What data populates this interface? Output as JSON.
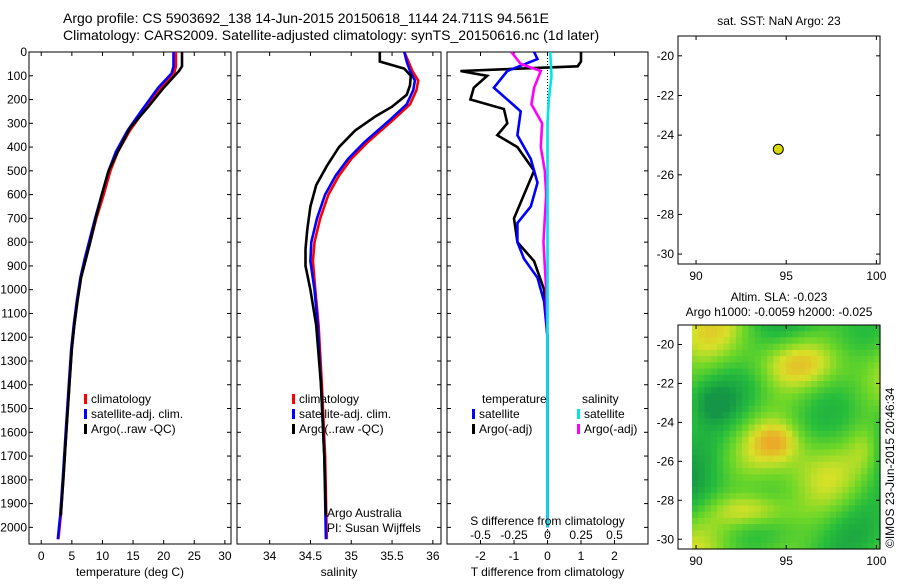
{
  "title_line1": "Argo profile: CS 5903692_138 14-Jun-2015 20150618_1144 24.711S 94.561E",
  "title_line2": "Climatology: CARS2009. Satellite-adjusted climatology: synTS_20150616.nc (1d later)",
  "credit": "Argo Australia",
  "pi": "PI: Susan Wijffels",
  "stamp": "©IMOS 23-Jun-2015 20:46:34",
  "colors": {
    "climatology": "#ff0000",
    "satellite": "#0000ff",
    "argo": "#000000",
    "sal_satellite": "#00e5e5",
    "sal_argo": "#ff00ff",
    "float_marker": "#d8d800"
  },
  "chart_data": [
    {
      "type": "line",
      "xlabel": "temperature (deg C)",
      "xlim": [
        -2,
        31
      ],
      "xticks": [
        0,
        5,
        10,
        15,
        20,
        25,
        30
      ],
      "ylim": [
        2070,
        0
      ],
      "yticks": [
        0,
        100,
        200,
        300,
        400,
        500,
        600,
        700,
        800,
        900,
        1000,
        1100,
        1200,
        1300,
        1400,
        1500,
        1600,
        1700,
        1800,
        1900,
        2000
      ],
      "legend": [
        "climatology",
        "satellite-adj. clim.",
        "Argo(..raw -QC)"
      ],
      "series": [
        {
          "name": "climatology",
          "color": "#ff0000",
          "points": [
            [
              22.0,
              0
            ],
            [
              22.0,
              60
            ],
            [
              21.7,
              90
            ],
            [
              19.5,
              150
            ],
            [
              16.7,
              250
            ],
            [
              14.5,
              330
            ],
            [
              12.5,
              420
            ],
            [
              11.3,
              500
            ],
            [
              10.2,
              600
            ],
            [
              9.0,
              700
            ],
            [
              8.0,
              800
            ],
            [
              7.3,
              870
            ],
            [
              6.5,
              950
            ],
            [
              5.9,
              1050
            ],
            [
              5.4,
              1150
            ],
            [
              5.0,
              1250
            ],
            [
              4.6,
              1400
            ],
            [
              4.1,
              1600
            ],
            [
              3.6,
              1800
            ],
            [
              3.2,
              1950
            ],
            [
              2.8,
              2050
            ]
          ]
        },
        {
          "name": "satellite-adj. clim.",
          "color": "#0000ff",
          "points": [
            [
              21.6,
              0
            ],
            [
              21.6,
              60
            ],
            [
              21.3,
              90
            ],
            [
              19.1,
              150
            ],
            [
              16.3,
              250
            ],
            [
              14.1,
              330
            ],
            [
              12.2,
              420
            ],
            [
              11.0,
              500
            ],
            [
              9.9,
              600
            ],
            [
              8.8,
              700
            ],
            [
              7.8,
              800
            ],
            [
              7.1,
              870
            ],
            [
              6.4,
              950
            ],
            [
              5.8,
              1050
            ],
            [
              5.3,
              1150
            ],
            [
              4.9,
              1250
            ],
            [
              4.5,
              1400
            ],
            [
              4.0,
              1600
            ],
            [
              3.5,
              1800
            ],
            [
              3.1,
              1950
            ],
            [
              2.7,
              2050
            ]
          ]
        },
        {
          "name": "Argo(..raw -QC)",
          "color": "#000000",
          "points": [
            [
              23.0,
              0
            ],
            [
              23.0,
              60
            ],
            [
              22.5,
              80
            ],
            [
              20.0,
              150
            ],
            [
              17.5,
              230
            ],
            [
              14.5,
              320
            ],
            [
              12.5,
              420
            ],
            [
              11.0,
              500
            ],
            [
              9.9,
              600
            ],
            [
              8.9,
              700
            ],
            [
              8.0,
              800
            ],
            [
              7.3,
              870
            ],
            [
              6.5,
              950
            ],
            [
              5.9,
              1050
            ],
            [
              5.4,
              1150
            ],
            [
              5.0,
              1250
            ],
            [
              4.6,
              1400
            ],
            [
              4.1,
              1600
            ],
            [
              3.6,
              1800
            ],
            [
              3.2,
              1950
            ]
          ]
        }
      ]
    },
    {
      "type": "line",
      "xlabel": "salinity",
      "xlim": [
        33.6,
        36.1
      ],
      "xticks": [
        34,
        34.5,
        35,
        35.5,
        36
      ],
      "xticklabels": [
        "34",
        "34.5",
        "35",
        "35.5",
        "36"
      ],
      "ylim": [
        2070,
        0
      ],
      "legend": [
        "climatology",
        "satellite-adj. clim.",
        "Argo(..raw -QC)"
      ],
      "series": [
        {
          "name": "climatology",
          "color": "#ff0000",
          "points": [
            [
              35.65,
              0
            ],
            [
              35.7,
              40
            ],
            [
              35.75,
              80
            ],
            [
              35.82,
              120
            ],
            [
              35.8,
              160
            ],
            [
              35.72,
              220
            ],
            [
              35.5,
              290
            ],
            [
              35.2,
              380
            ],
            [
              35.0,
              450
            ],
            [
              34.85,
              520
            ],
            [
              34.72,
              600
            ],
            [
              34.62,
              700
            ],
            [
              34.55,
              800
            ],
            [
              34.53,
              880
            ],
            [
              34.56,
              1000
            ],
            [
              34.6,
              1150
            ],
            [
              34.64,
              1400
            ],
            [
              34.68,
              1700
            ],
            [
              34.7,
              2050
            ]
          ]
        },
        {
          "name": "satellite-adj. clim.",
          "color": "#0000ff",
          "points": [
            [
              35.65,
              0
            ],
            [
              35.68,
              40
            ],
            [
              35.72,
              80
            ],
            [
              35.78,
              120
            ],
            [
              35.76,
              160
            ],
            [
              35.68,
              220
            ],
            [
              35.46,
              290
            ],
            [
              35.16,
              380
            ],
            [
              34.96,
              450
            ],
            [
              34.81,
              520
            ],
            [
              34.68,
              600
            ],
            [
              34.58,
              700
            ],
            [
              34.51,
              800
            ],
            [
              34.5,
              880
            ],
            [
              34.55,
              1000
            ],
            [
              34.59,
              1150
            ],
            [
              34.63,
              1400
            ],
            [
              34.67,
              1700
            ],
            [
              34.69,
              2050
            ]
          ]
        },
        {
          "name": "Argo(..raw -QC)",
          "color": "#000000",
          "points": [
            [
              35.35,
              0
            ],
            [
              35.35,
              40
            ],
            [
              35.65,
              70
            ],
            [
              35.73,
              100
            ],
            [
              35.72,
              140
            ],
            [
              35.68,
              180
            ],
            [
              35.5,
              230
            ],
            [
              35.3,
              270
            ],
            [
              35.05,
              330
            ],
            [
              34.85,
              400
            ],
            [
              34.7,
              480
            ],
            [
              34.57,
              560
            ],
            [
              34.5,
              650
            ],
            [
              34.46,
              750
            ],
            [
              34.44,
              830
            ],
            [
              34.44,
              900
            ],
            [
              34.5,
              1000
            ],
            [
              34.57,
              1150
            ],
            [
              34.63,
              1400
            ],
            [
              34.67,
              1700
            ],
            [
              34.69,
              1950
            ]
          ]
        }
      ]
    },
    {
      "type": "line",
      "xlabel": "T difference from climatology",
      "x2label": "S difference from climatology",
      "xlim": [
        -3,
        3
      ],
      "xticks": [
        -2,
        -1,
        0,
        1,
        2
      ],
      "x2ticks": [
        -0.5,
        -0.25,
        0,
        0.25,
        0.5
      ],
      "ylim": [
        2070,
        0
      ],
      "legend_groups": [
        {
          "title": "temperature",
          "items": [
            "satellite",
            "Argo(-adj)"
          ]
        },
        {
          "title": "salinity",
          "items": [
            "satellite",
            "Argo(-adj)"
          ]
        }
      ],
      "series": [
        {
          "name": "temperature Argo(-adj)",
          "color": "#000000",
          "points": [
            [
              1.0,
              0
            ],
            [
              1.0,
              40
            ],
            [
              0.9,
              60
            ],
            [
              -2.6,
              80
            ],
            [
              -1.8,
              100
            ],
            [
              -2.2,
              150
            ],
            [
              -2.3,
              200
            ],
            [
              -1.3,
              240
            ],
            [
              -1.2,
              300
            ],
            [
              -1.5,
              350
            ],
            [
              -0.9,
              400
            ],
            [
              -0.4,
              500
            ],
            [
              -0.7,
              600
            ],
            [
              -1.0,
              700
            ],
            [
              -0.9,
              800
            ],
            [
              -0.4,
              880
            ],
            [
              -0.1,
              1000
            ],
            [
              0.0,
              1200
            ],
            [
              0.0,
              2000
            ]
          ]
        },
        {
          "name": "temperature satellite",
          "color": "#0000ff",
          "points": [
            [
              -0.4,
              0
            ],
            [
              -0.3,
              30
            ],
            [
              -1.2,
              80
            ],
            [
              -1.6,
              150
            ],
            [
              -0.8,
              250
            ],
            [
              -0.9,
              350
            ],
            [
              -0.5,
              450
            ],
            [
              -0.3,
              550
            ],
            [
              -0.5,
              650
            ],
            [
              -0.9,
              720
            ],
            [
              -0.9,
              800
            ],
            [
              -0.7,
              870
            ],
            [
              -0.3,
              950
            ],
            [
              -0.1,
              1050
            ],
            [
              0.0,
              1200
            ],
            [
              0.0,
              2000
            ]
          ]
        },
        {
          "name": "salinity Argo(-adj)",
          "color": "#ff00ff",
          "points": [
            [
              -0.27,
              0
            ],
            [
              -0.2,
              50
            ],
            [
              -0.05,
              80
            ],
            [
              -0.1,
              150
            ],
            [
              -0.12,
              220
            ],
            [
              -0.04,
              300
            ],
            [
              -0.05,
              400
            ],
            [
              -0.02,
              500
            ],
            [
              -0.01,
              600
            ],
            [
              -0.02,
              700
            ],
            [
              -0.03,
              800
            ],
            [
              -0.02,
              900
            ],
            [
              -0.01,
              1000
            ],
            [
              0.0,
              1200
            ],
            [
              0.0,
              2000
            ]
          ]
        },
        {
          "name": "salinity satellite",
          "color": "#00e5e5",
          "points": [
            [
              0.02,
              0
            ],
            [
              0.03,
              100
            ],
            [
              0.01,
              200
            ],
            [
              0.0,
              300
            ],
            [
              0.0,
              500
            ],
            [
              0.0,
              800
            ],
            [
              0.0,
              1000
            ],
            [
              0.0,
              2000
            ]
          ]
        }
      ]
    },
    {
      "type": "scatter",
      "title": "sat. SST: NaN Argo: 23",
      "xlim": [
        89,
        100.2
      ],
      "xticks": [
        90,
        95,
        100
      ],
      "ylim": [
        -30.5,
        -19
      ],
      "yticks": [
        -20,
        -22,
        -24,
        -26,
        -28,
        -30
      ],
      "points": [
        [
          94.56,
          -24.71
        ]
      ]
    },
    {
      "type": "heatmap",
      "title": "Altim. SLA: -0.023",
      "subtitle": "Argo h1000: -0.0059 h2000: -0.025",
      "xlim": [
        89,
        100.2
      ],
      "xticks": [
        90,
        95,
        100
      ],
      "ylim": [
        -30.5,
        -19
      ],
      "yticks": [
        -20,
        -22,
        -24,
        -26,
        -28,
        -30
      ]
    }
  ]
}
